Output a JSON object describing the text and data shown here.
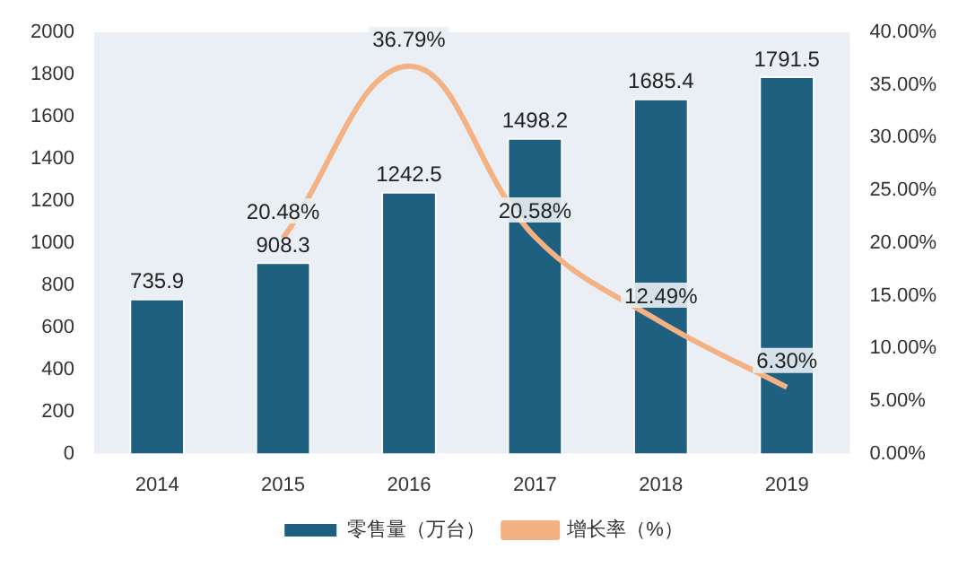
{
  "chart_data": {
    "type": "bar",
    "categories": [
      "2014",
      "2015",
      "2016",
      "2017",
      "2018",
      "2019"
    ],
    "series": [
      {
        "name": "零售量（万台）",
        "color": "#1f5f7f",
        "values": [
          735.9,
          908.3,
          1242.5,
          1498.2,
          1685.4,
          1791.5
        ],
        "value_labels": [
          "735.9",
          "908.3",
          "1242.5",
          "1498.2",
          "1685.4",
          "1791.5"
        ]
      },
      {
        "name": "增长率（%）",
        "type": "line",
        "axis": "y2",
        "color": "#f4b183",
        "values": [
          null,
          20.48,
          36.79,
          20.58,
          12.49,
          6.3
        ],
        "value_labels": [
          null,
          "20.48%",
          "36.79%",
          "20.58%",
          "12.49%",
          "6.30%"
        ]
      }
    ],
    "ylim": [
      0,
      2000
    ],
    "yticks": [
      0,
      200,
      400,
      600,
      800,
      1000,
      1200,
      1400,
      1600,
      1800,
      2000
    ],
    "y2lim": [
      0,
      40
    ],
    "y2ticks": [
      {
        "value": 0,
        "label": "0.00%"
      },
      {
        "value": 5,
        "label": "5.00%"
      },
      {
        "value": 10,
        "label": "10.00%"
      },
      {
        "value": 15,
        "label": "15.00%"
      },
      {
        "value": 20,
        "label": "20.00%"
      },
      {
        "value": 25,
        "label": "25.00%"
      },
      {
        "value": 30,
        "label": "30.00%"
      },
      {
        "value": 35,
        "label": "35.00%"
      },
      {
        "value": 40,
        "label": "40.00%"
      }
    ],
    "legend": "bottom",
    "grid": false,
    "marker": "none"
  }
}
